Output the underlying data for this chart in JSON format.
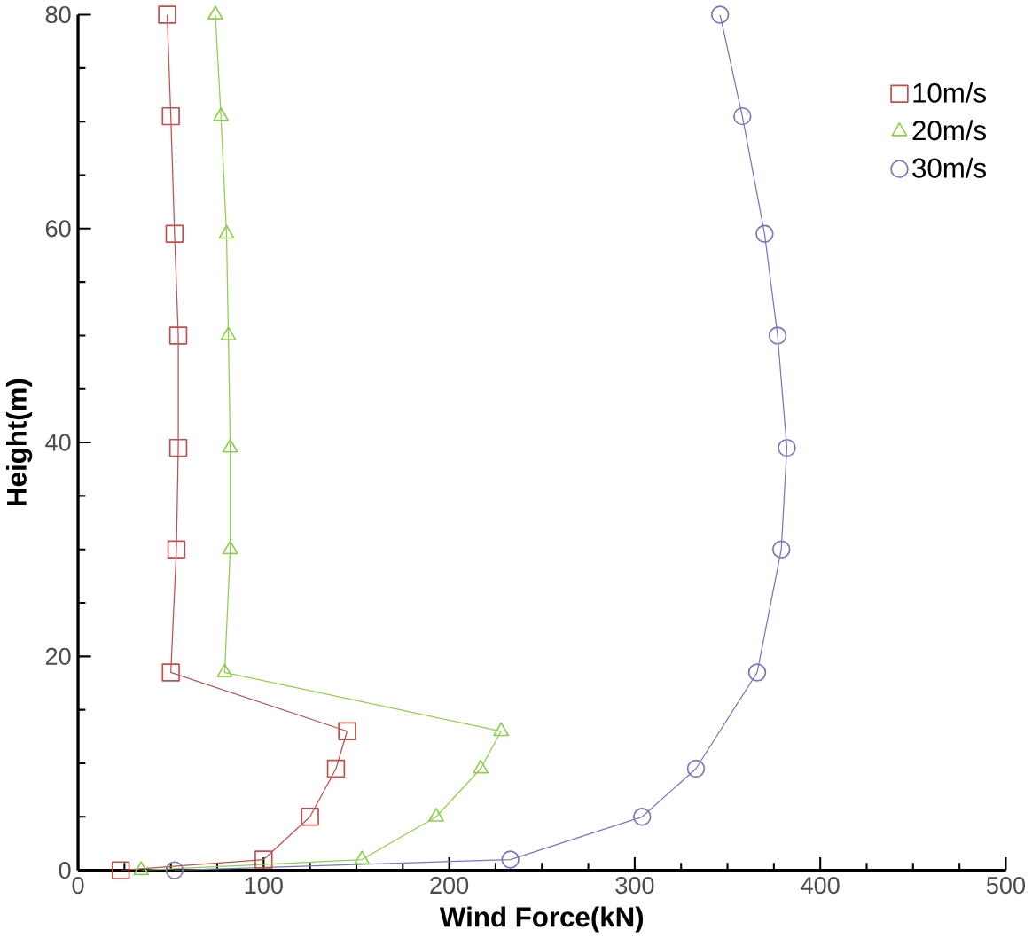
{
  "chart_data": {
    "type": "line",
    "xlabel": "Wind Force(kN)",
    "ylabel": "Height(m)",
    "xlim": [
      0,
      500
    ],
    "ylim": [
      0,
      80
    ],
    "xticks": [
      0,
      100,
      200,
      300,
      400,
      500
    ],
    "yticks": [
      0,
      20,
      40,
      60,
      80
    ],
    "grid": false,
    "legend": "top right",
    "line_style": "solid",
    "series": [
      {
        "name": "10m/s",
        "color": "#c0504d",
        "marker": "square",
        "x": [
          23,
          100,
          125,
          139,
          145,
          50,
          53,
          54,
          54,
          52,
          50,
          48
        ],
        "values": [
          0,
          1,
          5,
          9.5,
          13,
          18.5,
          30,
          39.5,
          50,
          59.5,
          70.5,
          80
        ]
      },
      {
        "name": "20m/s",
        "color": "#8fce4f",
        "marker": "triangle",
        "x": [
          34,
          153,
          193,
          217,
          228,
          79,
          82,
          82,
          81,
          80,
          77,
          74
        ],
        "values": [
          0,
          1,
          5,
          9.5,
          13,
          18.5,
          30,
          39.5,
          50,
          59.5,
          70.5,
          80
        ]
      },
      {
        "name": "30m/s",
        "color": "#7777bb",
        "marker": "circle",
        "x": [
          52,
          233,
          304,
          333,
          366,
          379,
          382,
          377,
          370,
          358,
          346
        ],
        "values": [
          0,
          1,
          5,
          9.5,
          18.5,
          30,
          39.5,
          50,
          59.5,
          70.5,
          80
        ]
      }
    ]
  }
}
